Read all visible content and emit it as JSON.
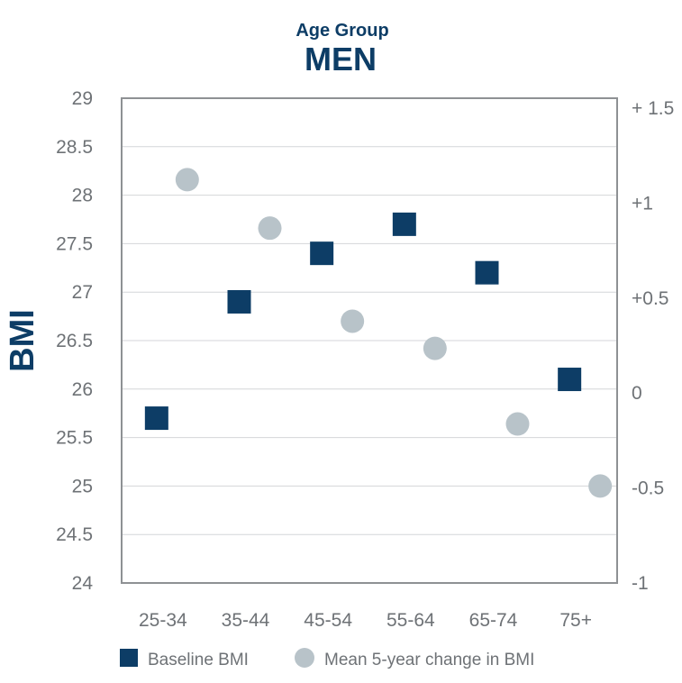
{
  "colors": {
    "navy": "#0d3d66",
    "gray_marker": "#b8c3c9",
    "axis": "#8e9194",
    "grid": "#d4d6d8",
    "tick_text": "#6e7276"
  },
  "chart_data": {
    "type": "scatter",
    "title": "MEN",
    "subtitle": "Age Group",
    "xlabel": "",
    "ylabel": "BMI",
    "categories": [
      "25-34",
      "35-44",
      "45-54",
      "55-64",
      "65-74",
      "75+"
    ],
    "ylim": [
      24,
      29
    ],
    "y_ticks": [
      "29",
      "28.5",
      "28",
      "27.5",
      "27",
      "26.5",
      "26",
      "25.5",
      "25",
      "24.5",
      "24"
    ],
    "y2lim": [
      -1,
      1.5
    ],
    "y2_ticks": [
      "+ 1.5",
      "+1",
      "+0.5",
      "0",
      "-0.5",
      "-1"
    ],
    "grid": true,
    "legend_position": "bottom",
    "series": [
      {
        "name": "Baseline BMI",
        "marker": "square",
        "axis": "left",
        "values": [
          25.7,
          26.9,
          27.4,
          27.7,
          27.2,
          26.1
        ]
      },
      {
        "name": "Mean 5-year change in BMI",
        "marker": "circle",
        "axis": "right",
        "values": [
          1.08,
          0.83,
          0.35,
          0.21,
          -0.18,
          -0.5
        ]
      }
    ]
  }
}
